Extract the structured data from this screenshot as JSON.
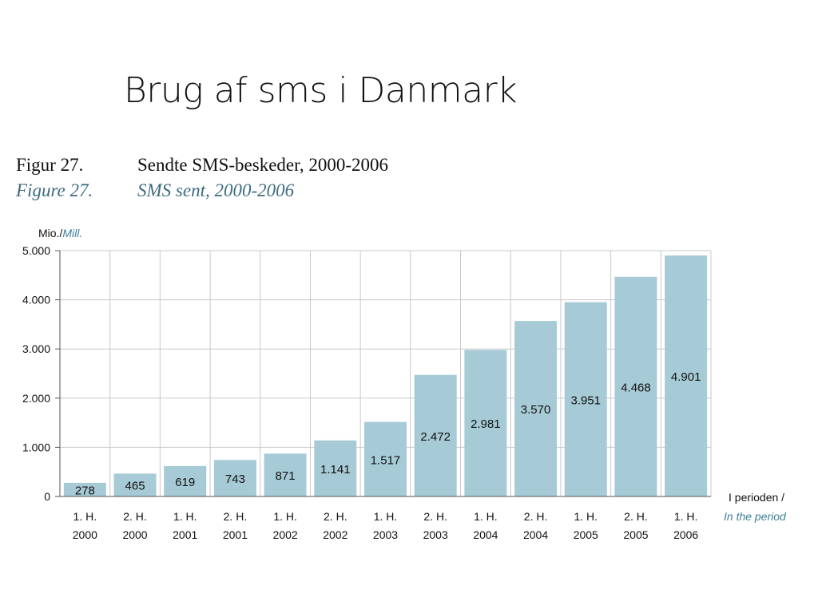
{
  "slide_title": "Brug af sms i Danmark",
  "figure": {
    "da_number": "Figur 27.",
    "da_caption": "Sendte SMS-beskeder, 2000-2006",
    "en_number": "Figure 27.",
    "en_caption": "SMS sent, 2000-2006"
  },
  "colors": {
    "bar": "#a6cbd6",
    "grid": "#c8c8c8",
    "axis": "#555555",
    "english_accent": "#3d7f9a"
  },
  "chart_data": {
    "type": "bar",
    "title": "Sendte SMS-beskeder, 2000-2006",
    "y_unit": "Mio./",
    "y_unit_en": "Mill.",
    "x_unit": "I perioden /",
    "x_unit_en": "In the period",
    "ylim": [
      0,
      5000
    ],
    "yticks": [
      {
        "value": 0,
        "label": "0"
      },
      {
        "value": 1000,
        "label": "1.000"
      },
      {
        "value": 2000,
        "label": "2.000"
      },
      {
        "value": 3000,
        "label": "3.000"
      },
      {
        "value": 4000,
        "label": "4.000"
      },
      {
        "value": 5000,
        "label": "5.000"
      }
    ],
    "grid": true,
    "categories": [
      [
        "1. H.",
        "2000"
      ],
      [
        "2. H.",
        "2000"
      ],
      [
        "1. H.",
        "2001"
      ],
      [
        "2. H.",
        "2001"
      ],
      [
        "1. H.",
        "2002"
      ],
      [
        "2. H.",
        "2002"
      ],
      [
        "1. H.",
        "2003"
      ],
      [
        "2. H.",
        "2003"
      ],
      [
        "1. H.",
        "2004"
      ],
      [
        "2. H.",
        "2004"
      ],
      [
        "1. H.",
        "2005"
      ],
      [
        "2. H.",
        "2005"
      ],
      [
        "1. H.",
        "2006"
      ]
    ],
    "values": [
      278,
      465,
      619,
      743,
      871,
      1141,
      1517,
      2472,
      2981,
      3570,
      3951,
      4468,
      4901
    ],
    "value_labels": [
      "278",
      "465",
      "619",
      "743",
      "871",
      "1.141",
      "1.517",
      "2.472",
      "2.981",
      "3.570",
      "3.951",
      "4.468",
      "4.901"
    ]
  }
}
